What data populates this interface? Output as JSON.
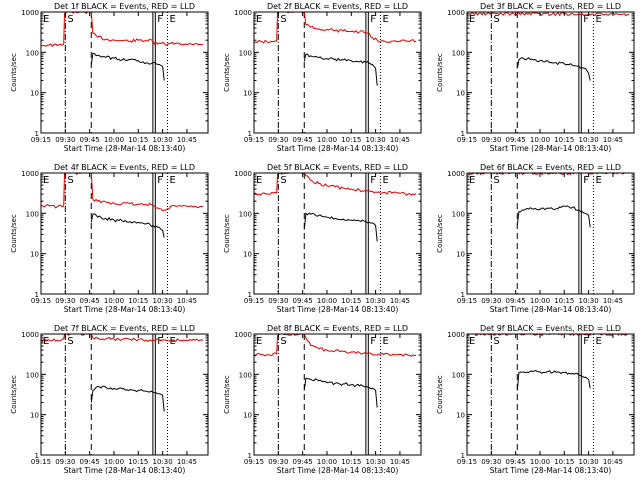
{
  "chart_data": {
    "type": "line",
    "shared": {
      "xlabel": "Start Time (28-Mar-14 08:13:40)",
      "ylabel": "Counts/sec",
      "x_tick_labels": [
        "09:15",
        "09:30",
        "09:45",
        "10:00",
        "10:15",
        "10:30",
        "10:45"
      ],
      "x_ticks_min": [
        15,
        30,
        45,
        60,
        75,
        90,
        105
      ],
      "xlim_min": [
        15,
        118
      ],
      "y_scale": "log",
      "ylim": [
        1,
        1000
      ],
      "y_tick_labels": [
        "1",
        "10",
        "100",
        "1000"
      ],
      "y_ticks": [
        1,
        10,
        100,
        1000
      ],
      "colors": {
        "events": "#000000",
        "lld": "#dd0000",
        "axes": "#000000"
      },
      "series_note": "BLACK = Events, RED = LLD",
      "markers": [
        {
          "label": "E",
          "x_min": 15,
          "style": "dotted"
        },
        {
          "label": "S",
          "x_min": 30,
          "style": "dashdot"
        },
        {
          "label": "",
          "x_min": 46,
          "style": "dashed"
        },
        {
          "label": "",
          "x_min": 84,
          "style": "solid"
        },
        {
          "label": "F",
          "x_min": 85.5,
          "style": "solid"
        },
        {
          "label": "E",
          "x_min": 93,
          "style": "dotted"
        }
      ]
    },
    "panels": [
      {
        "title": "Det 1f BLACK = Events, RED = LLD",
        "events": {
          "x": [
            46,
            47,
            50,
            55,
            60,
            65,
            70,
            75,
            80,
            84,
            86,
            88,
            89,
            90,
            91
          ],
          "y": [
            50,
            95,
            85,
            75,
            72,
            65,
            66,
            62,
            55,
            55,
            52,
            50,
            47,
            45,
            20
          ]
        },
        "lld": {
          "x": [
            15,
            20,
            25,
            29,
            29.5,
            31,
            32,
            33,
            34,
            46,
            47,
            50,
            55,
            60,
            65,
            70,
            75,
            80,
            84,
            85,
            88,
            91,
            92,
            95,
            100,
            105,
            110,
            115
          ],
          "y": [
            150,
            152,
            148,
            160,
            900,
            1000,
            1000,
            1000,
            1000,
            1000,
            300,
            240,
            210,
            200,
            195,
            190,
            200,
            195,
            195,
            160,
            170,
            165,
            150,
            165,
            170,
            155,
            165,
            160
          ]
        }
      },
      {
        "title": "Det 2f BLACK = Events, RED = LLD",
        "events": {
          "x": [
            46,
            47,
            50,
            55,
            60,
            65,
            70,
            75,
            80,
            84,
            86,
            88,
            89,
            90,
            91
          ],
          "y": [
            60,
            90,
            82,
            75,
            70,
            68,
            65,
            62,
            58,
            56,
            54,
            50,
            45,
            40,
            15
          ]
        },
        "lld": {
          "x": [
            15,
            20,
            25,
            29,
            29.5,
            31,
            32,
            33,
            34,
            46,
            47,
            50,
            55,
            60,
            65,
            70,
            75,
            80,
            84,
            85,
            88,
            91,
            92,
            95,
            100,
            105,
            110,
            115
          ],
          "y": [
            180,
            185,
            180,
            190,
            1000,
            1000,
            1000,
            1000,
            1000,
            1000,
            480,
            420,
            380,
            370,
            350,
            340,
            330,
            320,
            310,
            300,
            230,
            200,
            180,
            190,
            190,
            185,
            190,
            190
          ]
        }
      },
      {
        "title": "Det 3f BLACK = Events, RED = LLD",
        "events": {
          "x": [
            46,
            47,
            50,
            55,
            60,
            65,
            70,
            75,
            80,
            84,
            86,
            88,
            89,
            90,
            91
          ],
          "y": [
            40,
            65,
            70,
            68,
            62,
            60,
            55,
            52,
            48,
            45,
            42,
            40,
            35,
            30,
            20
          ]
        },
        "lld": {
          "x": [
            15,
            30,
            46,
            60,
            75,
            84,
            85,
            88,
            93,
            100,
            110,
            115
          ],
          "y": [
            900,
            900,
            900,
            900,
            900,
            900,
            850,
            850,
            870,
            870,
            870,
            870
          ]
        }
      },
      {
        "title": "Det 4f BLACK = Events, RED = LLD",
        "events": {
          "x": [
            46,
            47,
            50,
            55,
            60,
            65,
            70,
            75,
            80,
            84,
            86,
            88,
            89,
            90,
            91
          ],
          "y": [
            60,
            95,
            80,
            75,
            68,
            65,
            62,
            60,
            55,
            50,
            48,
            45,
            40,
            38,
            25
          ]
        },
        "lld": {
          "x": [
            15,
            20,
            25,
            29,
            29.5,
            31,
            32,
            33,
            34,
            46,
            47,
            50,
            55,
            60,
            65,
            70,
            75,
            80,
            84,
            85,
            88,
            91,
            92,
            95,
            100,
            105,
            110,
            115
          ],
          "y": [
            150,
            155,
            145,
            150,
            1000,
            1000,
            1000,
            1000,
            1000,
            1000,
            220,
            200,
            190,
            180,
            175,
            175,
            170,
            165,
            160,
            150,
            130,
            120,
            120,
            150,
            155,
            150,
            150,
            150
          ]
        }
      },
      {
        "title": "Det 5f BLACK = Events, RED = LLD",
        "events": {
          "x": [
            46,
            47,
            50,
            55,
            60,
            65,
            70,
            75,
            80,
            84,
            86,
            88,
            89,
            90,
            91
          ],
          "y": [
            40,
            100,
            95,
            90,
            80,
            75,
            72,
            68,
            65,
            62,
            60,
            58,
            55,
            50,
            20
          ]
        },
        "lld": {
          "x": [
            15,
            20,
            25,
            29,
            29.5,
            31,
            33,
            35,
            46,
            47,
            50,
            55,
            60,
            65,
            70,
            75,
            80,
            84,
            85,
            88,
            91,
            92,
            95,
            100,
            105,
            110,
            115
          ],
          "y": [
            300,
            310,
            300,
            320,
            900,
            1000,
            1000,
            1000,
            1000,
            850,
            650,
            550,
            480,
            450,
            420,
            400,
            380,
            370,
            360,
            350,
            330,
            340,
            330,
            320,
            310,
            300,
            310
          ]
        }
      },
      {
        "title": "Det 6f BLACK = Events, RED = LLD",
        "events": {
          "x": [
            46,
            47,
            50,
            55,
            60,
            65,
            70,
            75,
            80,
            84,
            86,
            88,
            89,
            90,
            91
          ],
          "y": [
            50,
            110,
            120,
            130,
            125,
            135,
            130,
            150,
            140,
            120,
            110,
            100,
            95,
            90,
            45
          ]
        },
        "lld": {
          "x": [
            15,
            115
          ],
          "y": [
            1000,
            1000
          ]
        }
      },
      {
        "title": "Det 7f BLACK = Events, RED = LLD",
        "events": {
          "x": [
            46,
            47,
            50,
            55,
            60,
            65,
            70,
            75,
            80,
            84,
            86,
            88,
            89,
            90,
            91
          ],
          "y": [
            20,
            40,
            50,
            48,
            45,
            44,
            42,
            40,
            38,
            36,
            35,
            33,
            32,
            30,
            12
          ]
        },
        "lld": {
          "x": [
            15,
            20,
            25,
            29,
            29.5,
            31,
            33,
            35,
            46,
            47,
            50,
            55,
            60,
            65,
            70,
            75,
            80,
            84,
            85,
            88,
            91,
            92,
            95,
            100,
            105,
            110,
            115
          ],
          "y": [
            700,
            720,
            700,
            750,
            1000,
            1000,
            1000,
            1000,
            1000,
            800,
            780,
            760,
            750,
            740,
            730,
            720,
            710,
            700,
            690,
            700,
            710,
            700,
            690,
            700,
            710,
            700,
            700
          ]
        }
      },
      {
        "title": "Det 8f BLACK = Events, RED = LLD",
        "events": {
          "x": [
            46,
            47,
            50,
            55,
            60,
            65,
            70,
            75,
            80,
            84,
            86,
            88,
            89,
            90,
            91
          ],
          "y": [
            40,
            80,
            75,
            70,
            62,
            60,
            58,
            55,
            52,
            50,
            47,
            45,
            43,
            40,
            15
          ]
        },
        "lld": {
          "x": [
            15,
            20,
            25,
            29,
            29.5,
            31,
            33,
            35,
            46,
            47,
            50,
            55,
            60,
            65,
            70,
            75,
            80,
            84,
            85,
            88,
            91,
            92,
            95,
            100,
            105,
            110,
            115
          ],
          "y": [
            300,
            310,
            300,
            320,
            900,
            1000,
            1000,
            1000,
            1000,
            800,
            520,
            430,
            400,
            380,
            370,
            360,
            350,
            340,
            330,
            310,
            300,
            320,
            310,
            300,
            310,
            300,
            300
          ]
        }
      },
      {
        "title": "Det 9f BLACK = Events, RED = LLD",
        "events": {
          "x": [
            46,
            47,
            50,
            55,
            60,
            65,
            70,
            75,
            80,
            84,
            86,
            88,
            89,
            90,
            91
          ],
          "y": [
            40,
            110,
            115,
            120,
            115,
            118,
            112,
            110,
            105,
            95,
            90,
            85,
            80,
            75,
            45
          ]
        },
        "lld": {
          "x": [
            15,
            115
          ],
          "y": [
            1000,
            1000
          ]
        }
      }
    ]
  }
}
